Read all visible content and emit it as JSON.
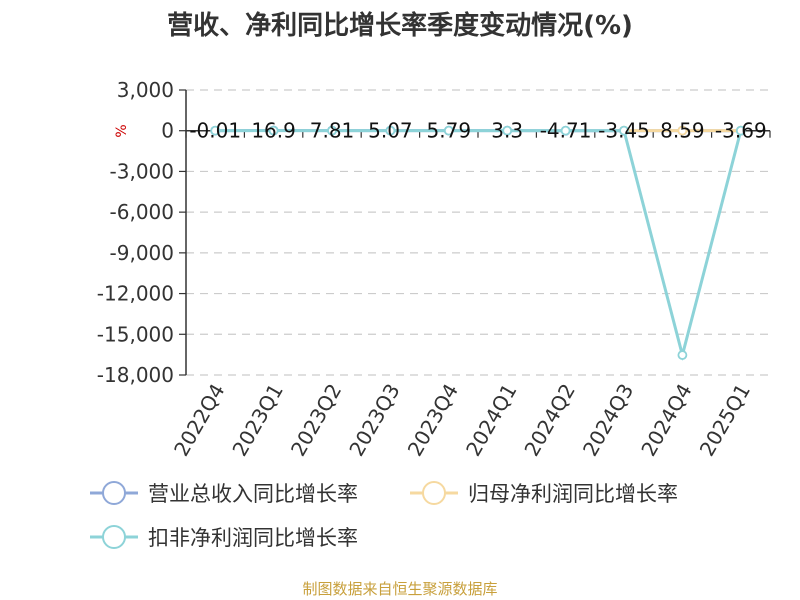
{
  "chart_data": {
    "type": "line",
    "title": "营收、净利同比增长率季度变动情况(%)",
    "unit_label": "%",
    "categories": [
      "2022Q4",
      "2023Q1",
      "2023Q2",
      "2023Q3",
      "2023Q4",
      "2024Q1",
      "2024Q2",
      "2024Q3",
      "2024Q4",
      "2025Q1"
    ],
    "ylim": [
      -18000,
      3000
    ],
    "yticks": [
      3000,
      0,
      -3000,
      -6000,
      -9000,
      -12000,
      -15000,
      -18000
    ],
    "ytick_labels": [
      "3,000",
      "0",
      "-3,000",
      "-6,000",
      "-9,000",
      "-12,000",
      "-15,000",
      "-18,000"
    ],
    "grid": "horizontal-dashed",
    "legend_position": "bottom-left",
    "series": [
      {
        "name": "营业总收入同比增长率",
        "color": "#8fa8d8",
        "values": [
          -0.01,
          16.9,
          7.81,
          5.07,
          5.79,
          3.3,
          -4.71,
          -3.45,
          8.59,
          -3.69
        ],
        "labels": [
          "-0.01",
          "16.9",
          "7.81",
          "5.07",
          "5.79",
          "3.3",
          "-4.71",
          "-3.45",
          "8.59",
          "-3.69"
        ]
      },
      {
        "name": "归母净利润同比增长率",
        "color": "#f6d9a0",
        "values": [
          null,
          null,
          null,
          null,
          null,
          null,
          null,
          5,
          5,
          5
        ],
        "labels": []
      },
      {
        "name": "扣非净利润同比增长率",
        "color": "#8dd3d8",
        "values": [
          5,
          5,
          5,
          5,
          5,
          5,
          5,
          5,
          -16530,
          5
        ],
        "labels": []
      }
    ]
  },
  "source": "制图数据来自恒生聚源数据库"
}
